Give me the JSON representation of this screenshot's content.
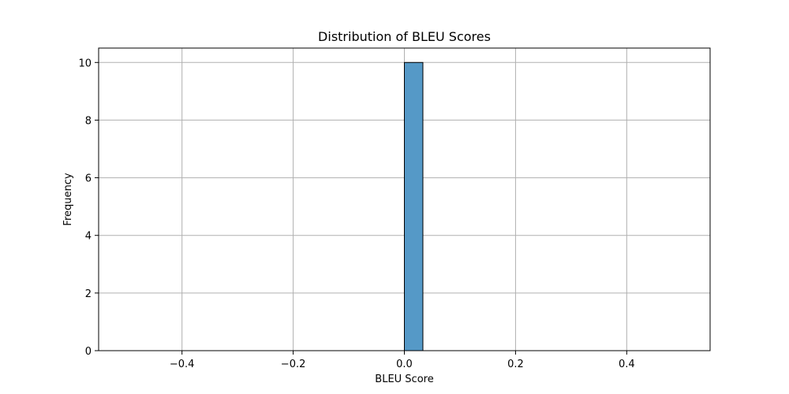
{
  "chart_data": {
    "type": "bar",
    "title": "Distribution of BLEU Scores",
    "xlabel": "BLEU Score",
    "ylabel": "Frequency",
    "xlim": [
      -0.55,
      0.55
    ],
    "ylim": [
      0,
      10.5
    ],
    "xticks": [
      -0.4,
      -0.2,
      0.0,
      0.2,
      0.4
    ],
    "xtick_labels": [
      "−0.4",
      "−0.2",
      "0.0",
      "0.2",
      "0.4"
    ],
    "yticks": [
      0,
      2,
      4,
      6,
      8,
      10
    ],
    "ytick_labels": [
      "0",
      "2",
      "4",
      "6",
      "8",
      "10"
    ],
    "grid": true,
    "bins": {
      "start": -0.5,
      "end": 0.5,
      "count": 30
    },
    "counts": [
      0,
      0,
      0,
      0,
      0,
      0,
      0,
      0,
      0,
      0,
      0,
      0,
      0,
      0,
      0,
      10,
      0,
      0,
      0,
      0,
      0,
      0,
      0,
      0,
      0,
      0,
      0,
      0,
      0,
      0
    ],
    "bar_color": "#5599c7",
    "edge_color": "#000000",
    "grid_color": "#b0b0b0"
  }
}
